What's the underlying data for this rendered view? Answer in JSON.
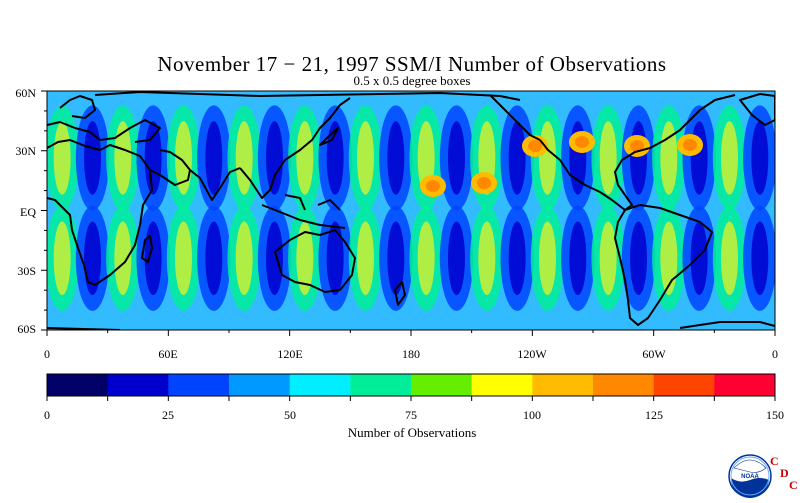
{
  "header": {
    "title": "November 17 − 21, 1997 SSM/I Number of Observations",
    "subtitle": "0.5 x 0.5 degree boxes"
  },
  "map": {
    "lat_labels": [
      "60N",
      "30N",
      "EQ",
      "30S",
      "60S"
    ],
    "lon_labels": [
      "0",
      "60E",
      "120E",
      "180",
      "120W",
      "60W",
      "0"
    ],
    "lat_range": [
      -60,
      60
    ],
    "lon_range": [
      0,
      360
    ],
    "coastline_color": "#000000"
  },
  "colorbar": {
    "title": "Number of Observations",
    "ticks": [
      "0",
      "25",
      "50",
      "75",
      "100",
      "125",
      "150"
    ],
    "range": [
      0,
      150
    ],
    "colors": [
      "#000066",
      "#0000cc",
      "#0044ff",
      "#0099ff",
      "#00eeff",
      "#00ee99",
      "#66ee00",
      "#ffff00",
      "#ffbb00",
      "#ff8800",
      "#ff4400",
      "#ff0033"
    ]
  },
  "logo": {
    "icon": "noaa-logo-icon",
    "text": "NOAA",
    "letters": [
      "C",
      "D",
      "C"
    ],
    "letter_color": "#cc0000"
  }
}
